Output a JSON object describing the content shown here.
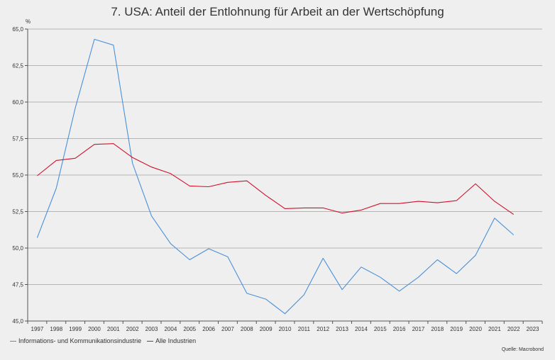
{
  "chart_data": {
    "type": "line",
    "title": "7. USA: Anteil der Entlohnung für Arbeit an der Wertschöpfung",
    "ylabel": "%",
    "xlabel": "",
    "ylim": [
      45.0,
      65.0
    ],
    "yticks": [
      "45,0",
      "47,5",
      "50,0",
      "52,5",
      "55,0",
      "57,5",
      "60,0",
      "62,5",
      "65,0"
    ],
    "ytick_values": [
      45.0,
      47.5,
      50.0,
      52.5,
      55.0,
      57.5,
      60.0,
      62.5,
      65.0
    ],
    "categories": [
      "1997",
      "1998",
      "1999",
      "2000",
      "2001",
      "2002",
      "2003",
      "2004",
      "2005",
      "2006",
      "2007",
      "2008",
      "2009",
      "2010",
      "2011",
      "2012",
      "2013",
      "2014",
      "2015",
      "2016",
      "2017",
      "2018",
      "2019",
      "2020",
      "2021",
      "2022",
      "2023"
    ],
    "series": [
      {
        "name": "Informations- und Kommunikationsindustrie",
        "color": "#4a90d9",
        "values": [
          50.7,
          54.1,
          59.6,
          64.3,
          63.9,
          55.8,
          52.2,
          50.3,
          49.2,
          49.95,
          49.4,
          46.9,
          46.5,
          45.5,
          46.8,
          49.3,
          47.15,
          48.7,
          48.0,
          47.05,
          48.0,
          49.2,
          48.25,
          49.5,
          52.05,
          50.9,
          null
        ]
      },
      {
        "name": "Alle Industrien",
        "color": "#d0112b",
        "values": [
          54.95,
          56.0,
          56.15,
          57.1,
          57.15,
          56.2,
          55.55,
          55.1,
          54.25,
          54.2,
          54.5,
          54.6,
          53.6,
          52.7,
          52.75,
          52.75,
          52.4,
          52.6,
          53.05,
          53.05,
          53.2,
          53.1,
          53.25,
          54.4,
          53.2,
          52.3,
          null
        ]
      }
    ],
    "grid": true,
    "legend": "bottom-left",
    "source": "Quelle: Macrobond"
  }
}
